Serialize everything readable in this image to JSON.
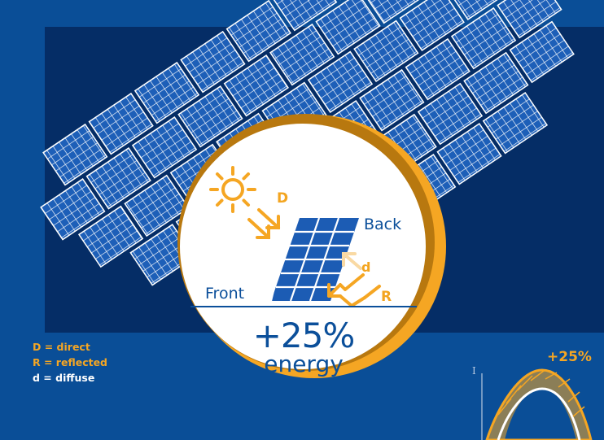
{
  "legend": {
    "direct": "D = direct",
    "reflected": "R = reflected",
    "diffuse": "d = diffuse"
  },
  "panel_labels": {
    "front": "Front",
    "back": "Back"
  },
  "irradiance_labels": {
    "direct": "D",
    "diffuse": "d",
    "reflected": "R"
  },
  "gain": {
    "value": "+25%",
    "unit": "energy"
  },
  "curve": {
    "gain_label": "+25%",
    "axis_label": "I"
  },
  "colors": {
    "background": "#0a4e97",
    "dark_band": "#052d66",
    "panel_blue": "#1f5fb5",
    "accent_orange": "#f5a623",
    "circle_white": "#ffffff",
    "text_blue": "#0b4f9a"
  },
  "icons": {
    "sun": "sun-icon",
    "panel": "solar-panel-icon"
  }
}
